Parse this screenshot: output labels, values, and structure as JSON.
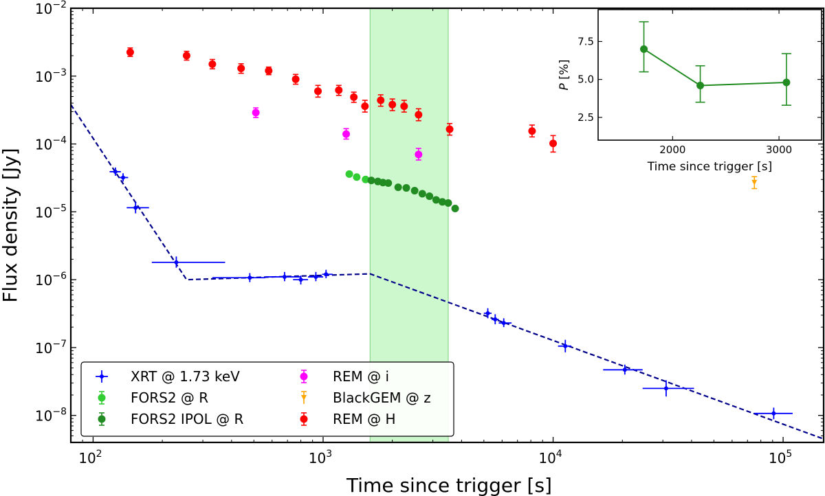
{
  "chart_data": [
    {
      "type": "scatter",
      "xscale": "log",
      "yscale": "log",
      "xlabel": "Time since trigger [s]",
      "ylabel": "Flux density [Jy]",
      "xlim": [
        80,
        150000
      ],
      "ylim": [
        4e-09,
        0.01
      ],
      "xticks": [
        {
          "value": 100,
          "base": "10",
          "exp": "2"
        },
        {
          "value": 1000,
          "base": "10",
          "exp": "3"
        },
        {
          "value": 10000,
          "base": "10",
          "exp": "4"
        },
        {
          "value": 100000,
          "base": "10",
          "exp": "5"
        }
      ],
      "yticks": [
        {
          "value": 1e-08,
          "base": "10",
          "exp": "−8"
        },
        {
          "value": 1e-07,
          "base": "10",
          "exp": "−7"
        },
        {
          "value": 1e-06,
          "base": "10",
          "exp": "−6"
        },
        {
          "value": 1e-05,
          "base": "10",
          "exp": "−5"
        },
        {
          "value": 0.0001,
          "base": "10",
          "exp": "−4"
        },
        {
          "value": 0.001,
          "base": "10",
          "exp": "−3"
        },
        {
          "value": 0.01,
          "base": "10",
          "exp": "−2"
        }
      ],
      "shaded_region": {
        "x": [
          1600,
          3500
        ],
        "color": "#90ee90"
      },
      "fit_line": {
        "name": "broken power-law fit",
        "color": "#00008b",
        "points": [
          [
            80,
            0.00038
          ],
          [
            255,
            1e-06
          ],
          [
            1600,
            1.22e-06
          ],
          [
            150000,
            4.5e-09
          ]
        ]
      },
      "series": [
        {
          "name": "XRT @ 1.73 keV",
          "color": "#0000ff",
          "marker": "xrt",
          "points": [
            {
              "x": 125,
              "y": 3.9e-05,
              "xlo": 118,
              "xhi": 132,
              "ylo": 3.4e-05,
              "yhi": 4.5e-05
            },
            {
              "x": 135,
              "y": 3.2e-05,
              "xlo": 130,
              "xhi": 142,
              "ylo": 2.8e-05,
              "yhi": 3.7e-05
            },
            {
              "x": 153,
              "y": 1.15e-05,
              "xlo": 140,
              "xhi": 175,
              "ylo": 9.5e-06,
              "yhi": 1.4e-05
            },
            {
              "x": 230,
              "y": 1.8e-06,
              "xlo": 180,
              "xhi": 375,
              "ylo": 1.5e-06,
              "yhi": 2.2e-06
            },
            {
              "x": 480,
              "y": 1.07e-06,
              "xlo": 330,
              "xhi": 560,
              "ylo": 9.2e-07,
              "yhi": 1.25e-06
            },
            {
              "x": 680,
              "y": 1.1e-06,
              "xlo": 560,
              "xhi": 800,
              "ylo": 9.5e-07,
              "yhi": 1.3e-06
            },
            {
              "x": 800,
              "y": 1e-06,
              "xlo": 740,
              "xhi": 860,
              "ylo": 8.5e-07,
              "yhi": 1.15e-06
            },
            {
              "x": 930,
              "y": 1.1e-06,
              "xlo": 860,
              "xhi": 1000,
              "ylo": 9.5e-07,
              "yhi": 1.3e-06
            },
            {
              "x": 1030,
              "y": 1.2e-06,
              "xlo": 990,
              "xhi": 1100,
              "ylo": 1.05e-06,
              "yhi": 1.4e-06
            },
            {
              "x": 5200,
              "y": 3.2e-07,
              "xlo": 5000,
              "xhi": 5400,
              "ylo": 2.7e-07,
              "yhi": 3.8e-07
            },
            {
              "x": 5600,
              "y": 2.6e-07,
              "xlo": 5400,
              "xhi": 5800,
              "ylo": 2.2e-07,
              "yhi": 3.1e-07
            },
            {
              "x": 6100,
              "y": 2.3e-07,
              "xlo": 5800,
              "xhi": 6600,
              "ylo": 2e-07,
              "yhi": 2.7e-07
            },
            {
              "x": 11300,
              "y": 1.05e-07,
              "xlo": 10500,
              "xhi": 12000,
              "ylo": 8.5e-08,
              "yhi": 1.3e-07
            },
            {
              "x": 20500,
              "y": 4.7e-08,
              "xlo": 16500,
              "xhi": 24500,
              "ylo": 4e-08,
              "yhi": 5.6e-08
            },
            {
              "x": 31000,
              "y": 2.5e-08,
              "xlo": 24500,
              "xhi": 41000,
              "ylo": 1.9e-08,
              "yhi": 3.3e-08
            },
            {
              "x": 91000,
              "y": 1.07e-08,
              "xlo": 75000,
              "xhi": 110000,
              "ylo": 8.8e-09,
              "yhi": 1.3e-08
            }
          ]
        },
        {
          "name": "FORS2 @ R",
          "color": "#32cd32",
          "marker": "circle",
          "points": [
            {
              "x": 1300,
              "y": 3.6e-05
            },
            {
              "x": 1400,
              "y": 3.25e-05
            },
            {
              "x": 1530,
              "y": 3e-05
            }
          ]
        },
        {
          "name": "FORS2 IPOL @ R",
          "color": "#228b22",
          "marker": "circle",
          "points": [
            {
              "x": 1620,
              "y": 2.9e-05
            },
            {
              "x": 1730,
              "y": 2.8e-05
            },
            {
              "x": 1820,
              "y": 2.7e-05
            },
            {
              "x": 1920,
              "y": 2.65e-05
            },
            {
              "x": 2120,
              "y": 2.3e-05
            },
            {
              "x": 2300,
              "y": 2.25e-05
            },
            {
              "x": 2500,
              "y": 2.05e-05
            },
            {
              "x": 2700,
              "y": 1.85e-05
            },
            {
              "x": 2900,
              "y": 1.7e-05
            },
            {
              "x": 3100,
              "y": 1.5e-05
            },
            {
              "x": 3300,
              "y": 1.4e-05
            },
            {
              "x": 3500,
              "y": 1.35e-05
            },
            {
              "x": 3750,
              "y": 1.12e-05
            }
          ]
        },
        {
          "name": "REM @ i",
          "color": "#ff00ff",
          "marker": "circle",
          "points": [
            {
              "x": 510,
              "y": 0.00029,
              "ylo": 0.000245,
              "yhi": 0.00034
            },
            {
              "x": 1260,
              "y": 0.00014,
              "ylo": 0.000118,
              "yhi": 0.000168
            },
            {
              "x": 2600,
              "y": 7e-05,
              "ylo": 5.8e-05,
              "yhi": 8.6e-05
            }
          ]
        },
        {
          "name": "BlackGEM @ z",
          "color": "#ffa500",
          "marker": "triangle",
          "points": [
            {
              "x": 75000,
              "y": 2.7e-05,
              "ylo": 2.2e-05,
              "yhi": 3.3e-05
            }
          ]
        },
        {
          "name": "REM @ H",
          "color": "#ff0000",
          "marker": "circle",
          "points": [
            {
              "x": 145,
              "y": 0.00225,
              "ylo": 0.00195,
              "yhi": 0.0026
            },
            {
              "x": 255,
              "y": 0.002,
              "ylo": 0.00172,
              "yhi": 0.00232
            },
            {
              "x": 330,
              "y": 0.0015,
              "ylo": 0.00128,
              "yhi": 0.00176
            },
            {
              "x": 440,
              "y": 0.0013,
              "ylo": 0.0011,
              "yhi": 0.00152
            },
            {
              "x": 580,
              "y": 0.0012,
              "ylo": 0.00105,
              "yhi": 0.00136
            },
            {
              "x": 760,
              "y": 0.0009,
              "ylo": 0.00076,
              "yhi": 0.00106
            },
            {
              "x": 950,
              "y": 0.0006,
              "ylo": 0.00049,
              "yhi": 0.00073
            },
            {
              "x": 1170,
              "y": 0.00062,
              "ylo": 0.00052,
              "yhi": 0.00073
            },
            {
              "x": 1360,
              "y": 0.00049,
              "ylo": 0.00041,
              "yhi": 0.00058
            },
            {
              "x": 1520,
              "y": 0.00036,
              "ylo": 0.000295,
              "yhi": 0.00044
            },
            {
              "x": 1780,
              "y": 0.00044,
              "ylo": 0.00036,
              "yhi": 0.00053
            },
            {
              "x": 2000,
              "y": 0.00038,
              "ylo": 0.00031,
              "yhi": 0.00046
            },
            {
              "x": 2250,
              "y": 0.00036,
              "ylo": 0.000295,
              "yhi": 0.00044
            },
            {
              "x": 2600,
              "y": 0.00027,
              "ylo": 0.00022,
              "yhi": 0.00033
            },
            {
              "x": 3550,
              "y": 0.000165,
              "ylo": 0.000135,
              "yhi": 0.0002
            },
            {
              "x": 8100,
              "y": 0.000155,
              "ylo": 0.000127,
              "yhi": 0.00019
            },
            {
              "x": 10000,
              "y": 0.000102,
              "ylo": 7.6e-05,
              "yhi": 0.000133
            }
          ]
        }
      ],
      "legend_position": "lower-left"
    },
    {
      "type": "line",
      "xlabel": "Time since trigger [s]",
      "ylabel_var": "P",
      "ylabel_unit": " [%]",
      "xlim": [
        1300,
        3400
      ],
      "ylim": [
        1.0,
        9.6
      ],
      "xticks": [
        2000,
        3000
      ],
      "ytick_values": [
        2.5,
        5.0,
        7.5
      ],
      "ytick_labels": [
        "2.5",
        "5.0",
        "7.5"
      ],
      "series": [
        {
          "name": "polarization degree",
          "color": "#228b22",
          "points": [
            {
              "x": 1730,
              "y": 7.0,
              "ylo": 5.5,
              "yhi": 8.8
            },
            {
              "x": 2260,
              "y": 4.6,
              "ylo": 3.5,
              "yhi": 5.9
            },
            {
              "x": 3070,
              "y": 4.8,
              "ylo": 3.3,
              "yhi": 6.7
            }
          ]
        }
      ],
      "legend_position": "none"
    }
  ]
}
